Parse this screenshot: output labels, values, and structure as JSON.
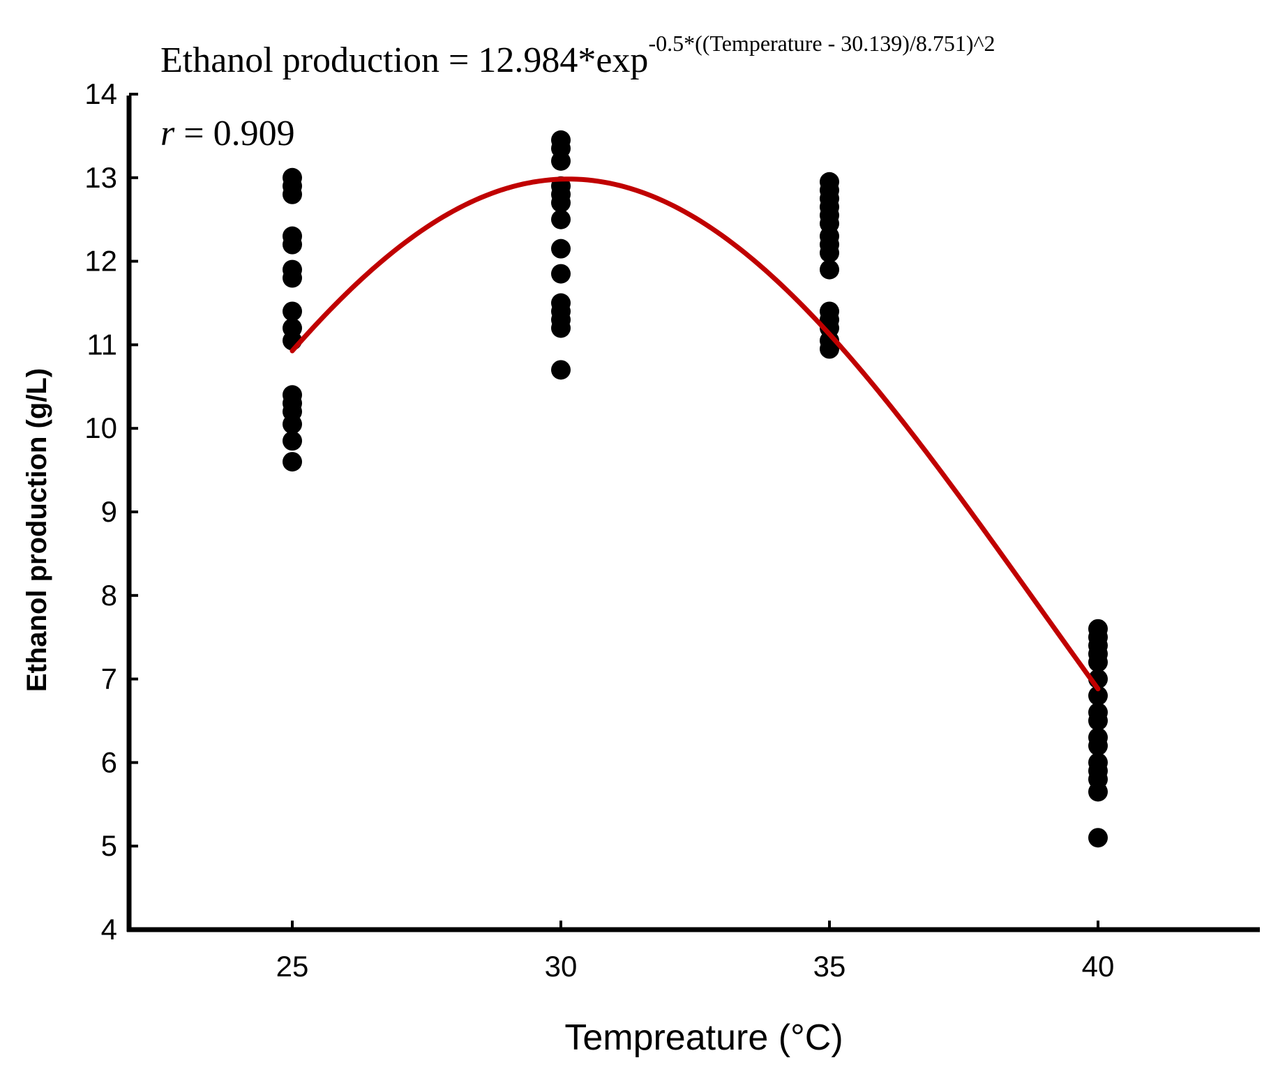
{
  "chart_data": {
    "type": "scatter",
    "equation": {
      "main": "Ethanol production = 12.984*exp",
      "exponent": "-0.5*((Temperature - 30.139)/8.751)^2"
    },
    "correlation": {
      "symbol": "r",
      "text": " = 0.909"
    },
    "xlabel": "Tempreature (°C)",
    "ylabel": "Ethanol production (g/L)",
    "xlim": [
      22,
      43
    ],
    "ylim": [
      4,
      14
    ],
    "x_ticks": [
      25,
      30,
      35,
      40
    ],
    "y_ticks": [
      4,
      5,
      6,
      7,
      8,
      9,
      10,
      11,
      12,
      13,
      14
    ],
    "fit": {
      "a": 12.984,
      "x0": 30.139,
      "b": 8.751,
      "x_start": 25,
      "x_end": 40,
      "color": "#c00000"
    },
    "point_color": "#000000",
    "series": [
      {
        "x": 25,
        "values": [
          13.0,
          12.9,
          12.8,
          12.3,
          12.2,
          11.9,
          11.8,
          11.4,
          11.2,
          11.05,
          10.4,
          10.3,
          10.2,
          10.05,
          9.85,
          9.6
        ]
      },
      {
        "x": 30,
        "values": [
          13.45,
          13.35,
          13.2,
          12.9,
          12.8,
          12.7,
          12.5,
          12.15,
          11.85,
          11.5,
          11.4,
          11.3,
          11.2,
          10.7
        ]
      },
      {
        "x": 35,
        "values": [
          12.95,
          12.85,
          12.75,
          12.65,
          12.55,
          12.45,
          12.3,
          12.2,
          12.1,
          11.9,
          11.4,
          11.3,
          11.2,
          11.05,
          10.95
        ]
      },
      {
        "x": 40,
        "values": [
          7.6,
          7.5,
          7.4,
          7.3,
          7.2,
          7.0,
          6.8,
          6.6,
          6.5,
          6.3,
          6.2,
          6.0,
          5.9,
          5.8,
          5.65,
          5.1
        ]
      }
    ]
  }
}
